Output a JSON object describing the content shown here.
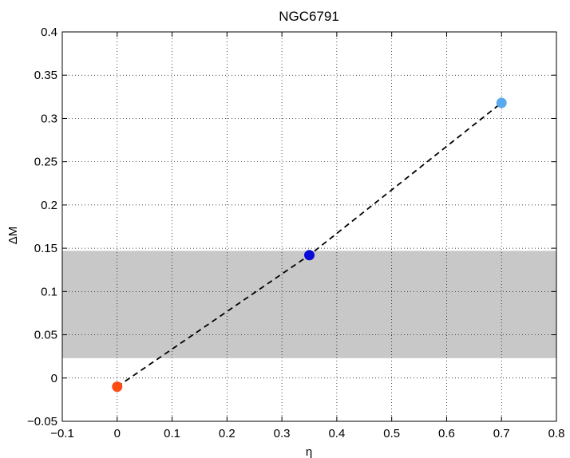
{
  "chart_data": {
    "type": "scatter",
    "title": "NGC6791",
    "xlabel": "η",
    "ylabel": "ΔM",
    "xlim": [
      -0.1,
      0.8
    ],
    "ylim": [
      -0.05,
      0.4
    ],
    "xticks": [
      -0.1,
      0,
      0.1,
      0.2,
      0.3,
      0.4,
      0.5,
      0.6,
      0.7,
      0.8
    ],
    "xtick_labels": [
      "−0.1",
      "0",
      "0.1",
      "0.2",
      "0.3",
      "0.4",
      "0.5",
      "0.6",
      "0.7",
      "0.8"
    ],
    "yticks": [
      -0.05,
      0,
      0.05,
      0.1,
      0.15,
      0.2,
      0.25,
      0.3,
      0.35,
      0.4
    ],
    "ytick_labels": [
      "−0.05",
      "0",
      "0.05",
      "0.1",
      "0.15",
      "0.2",
      "0.25",
      "0.3",
      "0.35",
      "0.4"
    ],
    "grid": true,
    "shaded_band": {
      "y_from": 0.023,
      "y_to": 0.147,
      "color": "#c8c8c8"
    },
    "line": {
      "style": "dashed",
      "color": "#000000",
      "x": [
        0,
        0.35,
        0.7
      ],
      "y": [
        -0.01,
        0.142,
        0.318
      ]
    },
    "points": [
      {
        "x": 0,
        "y": -0.01,
        "color": "#ff4a12"
      },
      {
        "x": 0.35,
        "y": 0.142,
        "color": "#0a0ad6"
      },
      {
        "x": 0.7,
        "y": 0.318,
        "color": "#5aa8ee"
      }
    ]
  }
}
